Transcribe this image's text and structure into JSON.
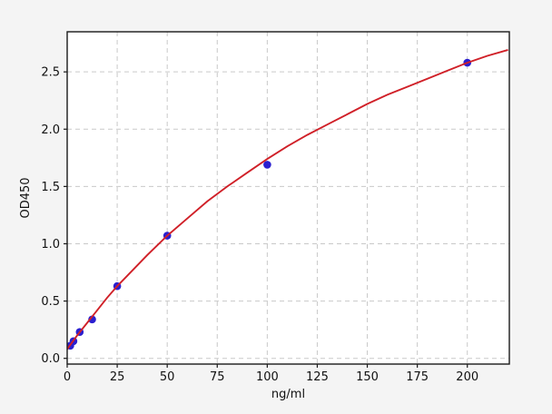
{
  "figure": {
    "background": "#f4f4f4",
    "plot_background": "#ffffff",
    "border_color": "#1a1a1a",
    "grid_color": "#c9c9c9",
    "tick_color": "#1a1a1a",
    "text_color": "#111111"
  },
  "chart_data": {
    "type": "scatter",
    "title": "",
    "xlabel": "ng/ml",
    "ylabel": "OD450",
    "xlim": [
      0,
      221
    ],
    "ylim": [
      -0.05,
      2.85
    ],
    "x_ticks": [
      0,
      25,
      50,
      75,
      100,
      125,
      150,
      175,
      200
    ],
    "y_ticks": [
      0.0,
      0.5,
      1.0,
      1.5,
      2.0,
      2.5
    ],
    "grid": true,
    "legend_position": "none",
    "series": [
      {
        "name": "standard-points",
        "type": "scatter",
        "color": "#2a1fd0",
        "marker": "circle",
        "x": [
          1.56,
          3.12,
          6.25,
          12.5,
          25,
          50,
          100,
          200
        ],
        "y": [
          0.11,
          0.15,
          0.23,
          0.34,
          0.63,
          1.07,
          1.69,
          2.58
        ]
      },
      {
        "name": "fitted-curve",
        "type": "line",
        "color": "#d02028",
        "points": [
          [
            0,
            0.08
          ],
          [
            5,
            0.2
          ],
          [
            10,
            0.31
          ],
          [
            15,
            0.42
          ],
          [
            20,
            0.53
          ],
          [
            25,
            0.63
          ],
          [
            30,
            0.72
          ],
          [
            40,
            0.9
          ],
          [
            50,
            1.07
          ],
          [
            60,
            1.22
          ],
          [
            70,
            1.37
          ],
          [
            80,
            1.5
          ],
          [
            90,
            1.62
          ],
          [
            100,
            1.74
          ],
          [
            110,
            1.85
          ],
          [
            120,
            1.95
          ],
          [
            130,
            2.04
          ],
          [
            140,
            2.13
          ],
          [
            150,
            2.22
          ],
          [
            160,
            2.3
          ],
          [
            170,
            2.37
          ],
          [
            180,
            2.44
          ],
          [
            190,
            2.51
          ],
          [
            200,
            2.58
          ],
          [
            210,
            2.64
          ],
          [
            220,
            2.69
          ]
        ]
      }
    ]
  }
}
